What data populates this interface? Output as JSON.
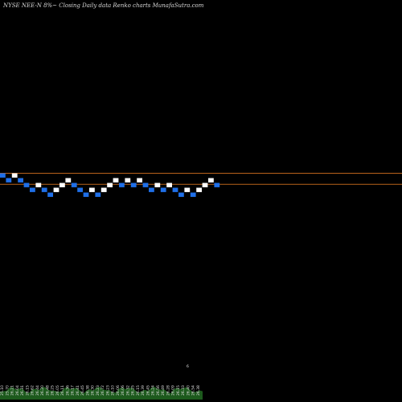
{
  "header": {
    "title": "NYSE NEE-N  8%~  Closing Daily data  Renko  charts MunafaSutra.com"
  },
  "chart_data": {
    "type": "renko",
    "title": "NYSE NEE-N  8%~  Closing Daily data  Renko  charts MunafaSutra.com",
    "brick_size": 1,
    "bricks": [
      {
        "level": 0,
        "dir": "down"
      },
      {
        "level": -1,
        "dir": "down"
      },
      {
        "level": 0,
        "dir": "up"
      },
      {
        "level": -1,
        "dir": "down"
      },
      {
        "level": -2,
        "dir": "down"
      },
      {
        "level": -3,
        "dir": "down"
      },
      {
        "level": -2,
        "dir": "up"
      },
      {
        "level": -3,
        "dir": "down"
      },
      {
        "level": -4,
        "dir": "down"
      },
      {
        "level": -3,
        "dir": "up"
      },
      {
        "level": -2,
        "dir": "up"
      },
      {
        "level": -1,
        "dir": "up"
      },
      {
        "level": -2,
        "dir": "down"
      },
      {
        "level": -3,
        "dir": "down"
      },
      {
        "level": -4,
        "dir": "down"
      },
      {
        "level": -3,
        "dir": "up"
      },
      {
        "level": -4,
        "dir": "down"
      },
      {
        "level": -3,
        "dir": "up"
      },
      {
        "level": -2,
        "dir": "up"
      },
      {
        "level": -1,
        "dir": "up"
      },
      {
        "level": -2,
        "dir": "down"
      },
      {
        "level": -1,
        "dir": "up"
      },
      {
        "level": -2,
        "dir": "down"
      },
      {
        "level": -1,
        "dir": "up"
      },
      {
        "level": -2,
        "dir": "down"
      },
      {
        "level": -3,
        "dir": "down"
      },
      {
        "level": -2,
        "dir": "up"
      },
      {
        "level": -3,
        "dir": "down"
      },
      {
        "level": -2,
        "dir": "up"
      },
      {
        "level": -3,
        "dir": "down"
      },
      {
        "level": -4,
        "dir": "down"
      },
      {
        "level": -3,
        "dir": "up"
      },
      {
        "level": -4,
        "dir": "down"
      },
      {
        "level": -3,
        "dir": "up"
      },
      {
        "level": -2,
        "dir": "up"
      },
      {
        "level": -1,
        "dir": "up"
      },
      {
        "level": -2,
        "dir": "down"
      }
    ],
    "reference_lines": [
      0.5,
      -1.8
    ],
    "x_tick_labels": [
      "25.10",
      "25.70",
      "26.21",
      "26.04",
      "26.31",
      "26.15",
      "26.62",
      "26.44",
      "26.20",
      "26.48",
      "26.25",
      "26.05",
      "26.11",
      "26.36",
      "26.17",
      "26.41",
      "26.45",
      "26.38",
      "26.30",
      "26.23",
      "26.72",
      "26.23",
      "26.10",
      "26.06",
      "26.06",
      "26.32",
      "26.25",
      "26.15",
      "26.39",
      "26.45",
      "26.24",
      "26.56",
      "26.49",
      "26.28",
      "26.09",
      "26.15",
      "26.33",
      "26.40",
      "26.54",
      "26.38"
    ],
    "volume_marker": "6",
    "colors": {
      "background": "#000000",
      "up_brick": "#ffffff",
      "down_brick": "#1f6fe8",
      "reference_line": "#b8621b",
      "volume": "#1d5a1d"
    }
  }
}
